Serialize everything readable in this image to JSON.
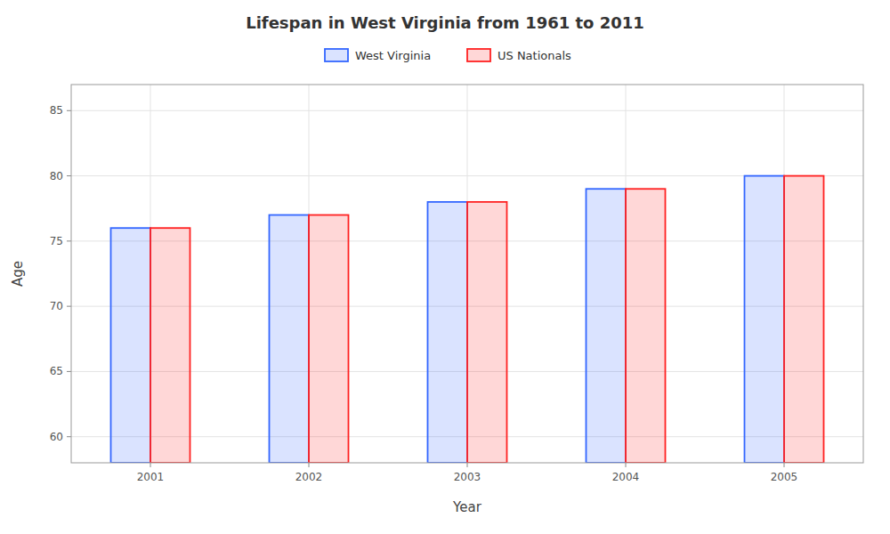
{
  "chart_data": {
    "type": "bar",
    "title": "Lifespan in West Virginia from 1961 to 2011",
    "x_label": "Year",
    "y_label": "Age",
    "categories": [
      "2001",
      "2002",
      "2003",
      "2004",
      "2005"
    ],
    "series": [
      {
        "name": "West Virginia",
        "color": "#3366ff",
        "values": [
          76,
          77,
          78,
          79,
          80
        ]
      },
      {
        "name": "US Nationals",
        "color": "#ff2222",
        "values": [
          76,
          77,
          78,
          79,
          80
        ]
      }
    ],
    "ylim": [
      58,
      87
    ],
    "yticks": [
      60,
      65,
      70,
      75,
      80,
      85
    ],
    "grid": true,
    "legend": "top"
  }
}
